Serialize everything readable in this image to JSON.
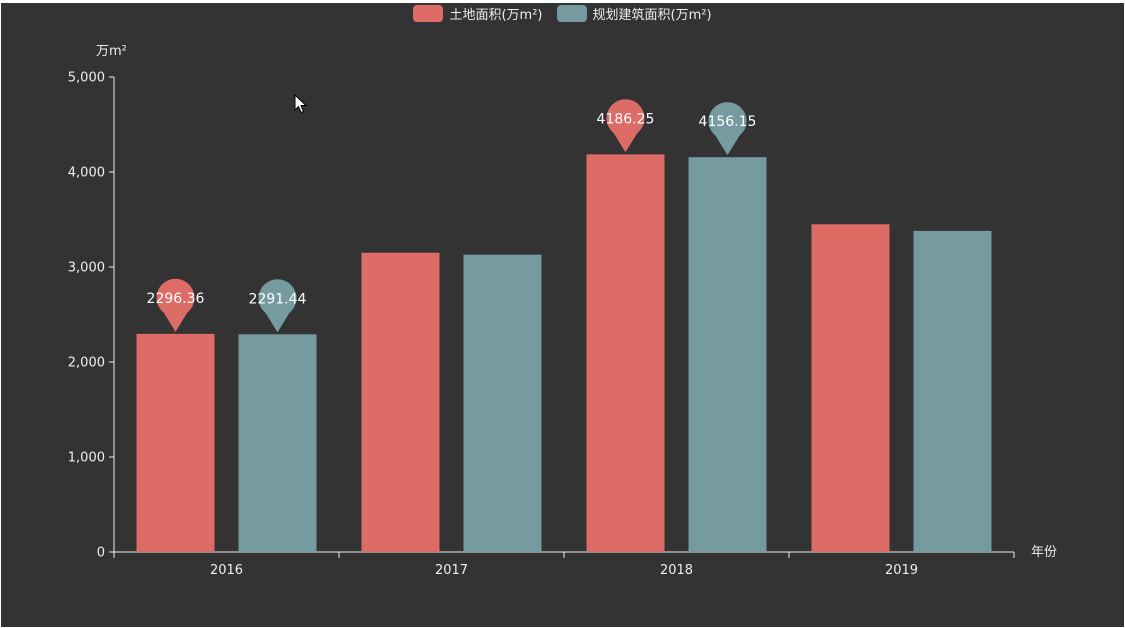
{
  "colors": {
    "background": "#333333",
    "series": [
      "#dd6b66",
      "#759aa0"
    ],
    "axis": "#eeeeee",
    "text": "#eeeeee"
  },
  "chart_data": {
    "type": "bar",
    "categories": [
      "2016",
      "2017",
      "2018",
      "2019"
    ],
    "series": [
      {
        "name": "土地面积(万m²)",
        "values": [
          2296.36,
          3150,
          4186.25,
          3450
        ]
      },
      {
        "name": "规划建筑面积(万m²)",
        "values": [
          2291.44,
          3130,
          4156.15,
          3380
        ]
      }
    ],
    "annotations": [
      {
        "series": 0,
        "category": "2016",
        "label": "2296.36"
      },
      {
        "series": 1,
        "category": "2016",
        "label": "2291.44"
      },
      {
        "series": 0,
        "category": "2018",
        "label": "4186.25"
      },
      {
        "series": 1,
        "category": "2018",
        "label": "4156.15"
      }
    ],
    "y_ticks": [
      "0",
      "1,000",
      "2,000",
      "3,000",
      "4,000",
      "5,000"
    ],
    "ylim": [
      0,
      5000
    ],
    "ylabel": "万m²",
    "xlabel": "年份",
    "grid": false,
    "legend_position": "top-center"
  },
  "cursor_icon": "arrow-pointer-icon"
}
